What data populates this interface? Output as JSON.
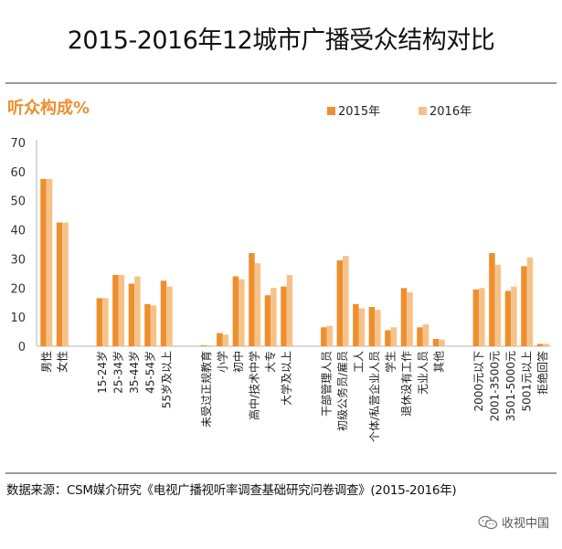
{
  "title": "2015-2016年12城市广播受众结构对比",
  "source": "数据来源：CSM媒介研究《电视广播视听率调查基础研究问卷调查》(2015-2016年)",
  "footer": {
    "brand": "收视中国",
    "icon": "wechat-icon"
  },
  "colors": {
    "s2015": "#ee8f2e",
    "s2016": "#f6c28a",
    "subtitle": "#ee8f2e"
  },
  "chart_data": {
    "type": "bar",
    "title": "听众构成%",
    "ylim": [
      0,
      70
    ],
    "yticks": [
      0,
      10,
      20,
      30,
      40,
      50,
      60,
      70
    ],
    "legend": [
      "2015年",
      "2016年"
    ],
    "legend_position": "top-right",
    "groups": [
      {
        "name": "gender",
        "categories": [
          "男性",
          "女性"
        ]
      },
      {
        "name": "age",
        "categories": [
          "15-24岁",
          "25-34岁",
          "35-44岁",
          "45-54岁",
          "55岁及以上"
        ]
      },
      {
        "name": "education",
        "categories": [
          "未受过正规教育",
          "小学",
          "初中",
          "高中/技术中学",
          "大专",
          "大学及以上"
        ]
      },
      {
        "name": "occupation",
        "categories": [
          "干部管理人员",
          "初级公务员/雇员",
          "工人",
          "个体/私营企业人员",
          "学生",
          "退休没有工作",
          "无业人员",
          "其他"
        ]
      },
      {
        "name": "income",
        "categories": [
          "2000元以下",
          "2001-3500元",
          "3501-5000元",
          "5001元以上",
          "拒绝回答"
        ]
      }
    ],
    "series": [
      {
        "name": "2015年",
        "values": [
          [
            57.5,
            42.5
          ],
          [
            16.5,
            24.5,
            21.5,
            14.5,
            22.5
          ],
          [
            0.3,
            4.5,
            24,
            32,
            17.5,
            20.5
          ],
          [
            6.5,
            29.5,
            14.5,
            13.5,
            5.5,
            20,
            6.5,
            2.5
          ],
          [
            19.5,
            32,
            19,
            27.5,
            0.8
          ]
        ]
      },
      {
        "name": "2016年",
        "values": [
          [
            57.5,
            42.5
          ],
          [
            16.5,
            24.5,
            24,
            14,
            20.5
          ],
          [
            0.3,
            4,
            23,
            28.5,
            20,
            24.5
          ],
          [
            7,
            31,
            13,
            12.5,
            6.5,
            18.5,
            7.5,
            2.3
          ],
          [
            20,
            28,
            20.5,
            30.5,
            0.8
          ]
        ]
      }
    ]
  }
}
